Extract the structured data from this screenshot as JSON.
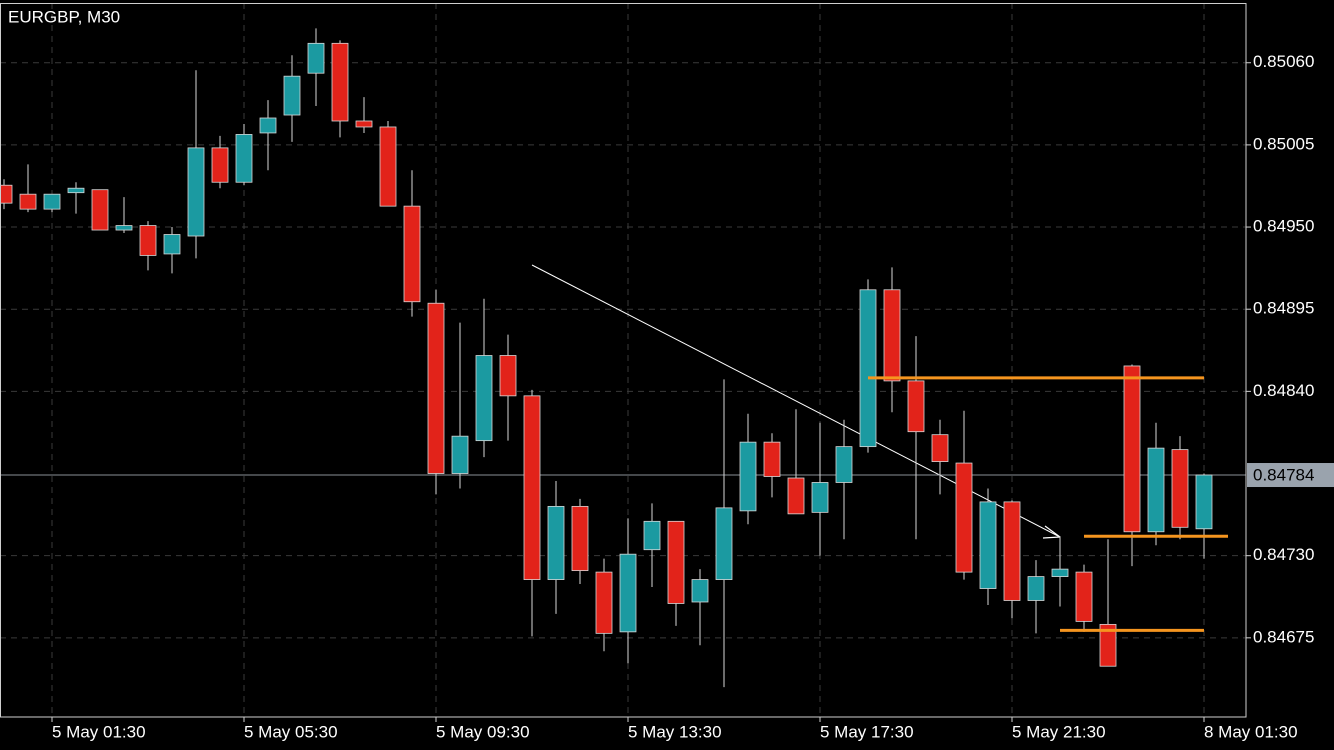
{
  "chart_data": {
    "type": "candlestick",
    "title": "EURGBP, M30",
    "categories": [
      null,
      null,
      "5 May 01:30",
      null,
      null,
      null,
      null,
      null,
      null,
      null,
      "5 May 05:30",
      null,
      null,
      null,
      null,
      null,
      null,
      null,
      "5 May 09:30",
      null,
      null,
      null,
      null,
      null,
      null,
      null,
      "5 May 13:30",
      null,
      null,
      null,
      null,
      null,
      null,
      null,
      "5 May 17:30",
      null,
      null,
      null,
      null,
      null,
      null,
      null,
      "5 May 21:30",
      null,
      null,
      null,
      null,
      null,
      null,
      null,
      "8 May 01:30"
    ],
    "open": [
      0.84978,
      0.84972,
      0.84962,
      0.84973,
      0.84975,
      0.84948,
      0.84951,
      0.84932,
      0.84944,
      0.85003,
      0.8498,
      0.85013,
      0.85025,
      0.85053,
      0.85073,
      0.85021,
      0.85017,
      0.84964,
      0.84899,
      0.84785,
      0.84807,
      0.84864,
      0.84837,
      0.84714,
      0.84763,
      0.84719,
      0.84679,
      0.84734,
      0.84753,
      0.84699,
      0.84714,
      0.8476,
      0.84806,
      0.84782,
      0.84759,
      0.84779,
      0.84803,
      0.84908,
      0.84847,
      0.84811,
      0.84792,
      0.84708,
      0.84766,
      0.847,
      0.84716,
      0.84719,
      0.84684,
      0.84857,
      0.84746,
      0.84801,
      0.84748
    ],
    "high": [
      0.84982,
      0.84992,
      0.84972,
      0.8498,
      0.84975,
      0.8497,
      0.84954,
      0.8495,
      0.85055,
      0.85011,
      0.85019,
      0.85035,
      0.85065,
      0.85083,
      0.85075,
      0.85037,
      0.85021,
      0.84988,
      0.84908,
      0.84886,
      0.84902,
      0.84878,
      0.84841,
      0.8478,
      0.84768,
      0.84728,
      0.84755,
      0.84765,
      0.84753,
      0.84721,
      0.84848,
      0.84825,
      0.84812,
      0.84828,
      0.84819,
      0.84821,
      0.84915,
      0.84923,
      0.84877,
      0.84821,
      0.84827,
      0.84775,
      0.84767,
      0.84727,
      0.84743,
      0.84724,
      0.84741,
      0.84858,
      0.84819,
      0.8481,
      0.84785
    ],
    "low": [
      0.84962,
      0.8496,
      0.8496,
      0.84959,
      0.84948,
      0.84946,
      0.84921,
      0.84919,
      0.84929,
      0.84976,
      0.84978,
      0.84988,
      0.85007,
      0.85031,
      0.8501,
      0.85013,
      0.84964,
      0.8489,
      0.84771,
      0.84775,
      0.84796,
      0.84807,
      0.84676,
      0.84691,
      0.84711,
      0.84666,
      0.84658,
      0.84709,
      0.84683,
      0.8467,
      0.84642,
      0.84751,
      0.84769,
      0.84758,
      0.8473,
      0.84741,
      0.84799,
      0.84826,
      0.84741,
      0.84771,
      0.84714,
      0.84697,
      0.84688,
      0.84678,
      0.84696,
      0.84679,
      0.84656,
      0.84723,
      0.84737,
      0.84741,
      0.84728
    ],
    "close": [
      0.84966,
      0.84962,
      0.84972,
      0.84976,
      0.84948,
      0.84951,
      0.84931,
      0.84945,
      0.85003,
      0.8498,
      0.85012,
      0.85023,
      0.85051,
      0.85073,
      0.85021,
      0.85017,
      0.84964,
      0.849,
      0.84785,
      0.8481,
      0.84864,
      0.84837,
      0.84714,
      0.84763,
      0.8472,
      0.84678,
      0.84731,
      0.84753,
      0.84698,
      0.84714,
      0.84762,
      0.84806,
      0.84783,
      0.84758,
      0.84779,
      0.84803,
      0.84908,
      0.84847,
      0.84813,
      0.84793,
      0.84719,
      0.84766,
      0.847,
      0.84716,
      0.84721,
      0.84686,
      0.84656,
      0.84746,
      0.84802,
      0.84749,
      0.84784
    ],
    "up_color": "#1b9aa1",
    "down_color": "#e2231a",
    "wick_color": "#d8d8d8",
    "ylim": [
      0.84622,
      0.85102
    ],
    "yticks": [
      {
        "value": 0.8506,
        "label": "0.85060"
      },
      0.85005,
      {
        "value": 0.8495,
        "label": "0.84950"
      },
      0.84895,
      {
        "value": 0.8484,
        "label": "0.84840"
      },
      {
        "value": 0.8473,
        "label": "0.84730"
      },
      0.84675
    ],
    "grid": true,
    "current_price": 0.84784,
    "horizontal_lines": [
      {
        "value": 0.84849,
        "color": "#f5951f"
      },
      {
        "value": 0.84743,
        "color": "#f5951f"
      },
      {
        "value": 0.8468,
        "color": "#f5951f"
      }
    ]
  }
}
